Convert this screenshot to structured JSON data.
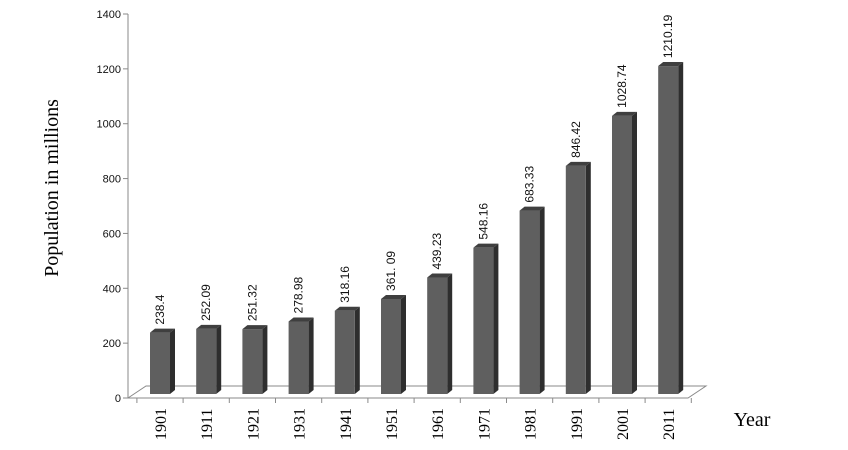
{
  "chart_data": {
    "type": "bar",
    "categories": [
      "1901",
      "1911",
      "1921",
      "1931",
      "1941",
      "1951",
      "1961",
      "1971",
      "1981",
      "1991",
      "2001",
      "2011"
    ],
    "values": [
      238.4,
      252.09,
      251.32,
      278.98,
      318.16,
      361.09,
      439.23,
      548.16,
      683.33,
      846.42,
      1028.74,
      1210.19
    ],
    "data_labels": [
      "238.4",
      "252.09",
      "251.32",
      "278.98",
      "318.16",
      "361. 09",
      "439.23",
      "548.16",
      "683.33",
      "846.42",
      "1028.74",
      "1210.19"
    ],
    "ylabel": "Population in millions",
    "xlabel": "Year",
    "ylim": [
      0,
      1400
    ],
    "yticks": [
      0,
      200,
      400,
      600,
      800,
      1000,
      1200,
      1400
    ],
    "grid": false,
    "legend": "none",
    "style": "3d-bars",
    "colors": {
      "bar_front": "#5f5f5f",
      "bar_side": "#2e2e2e",
      "bar_top": "#3f3f3f",
      "axis": "#8a8a8a"
    }
  }
}
